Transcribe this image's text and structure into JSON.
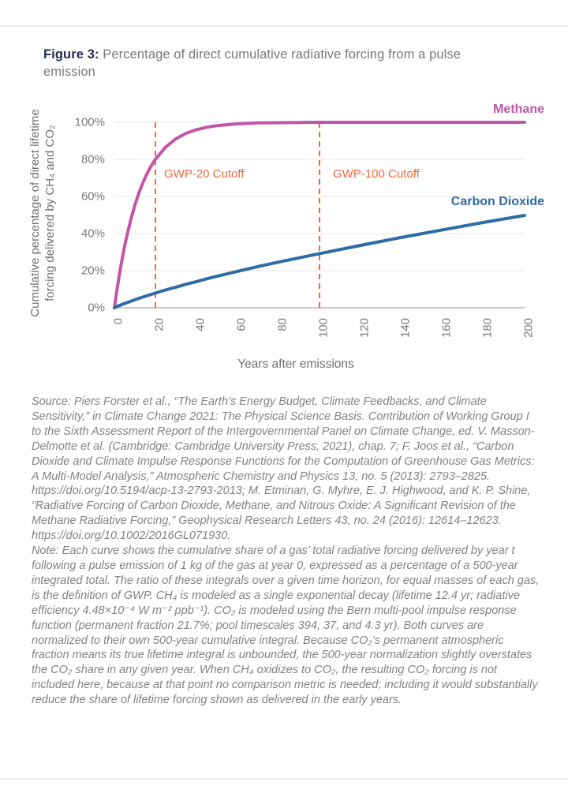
{
  "figure": {
    "label": "Figure 3:",
    "title": " Percentage of direct cumulative radiative forcing from a pulse emission"
  },
  "chart": {
    "y_axis_label_line1": "Cumulative percentage of direct lifetime",
    "y_axis_label_line2": "forcing delivered by CH₄ and CO₂",
    "x_axis_label": "Years after emissions",
    "methane_label": "Methane",
    "co2_label": "Carbon Dioxide",
    "gwp20_label": "GWP-20 Cutoff",
    "gwp100_label": "GWP-100 Cutoff"
  },
  "chart_data": {
    "type": "line",
    "title": "Percentage of direct cumulative radiative forcing from a pulse emission",
    "xlabel": "Years after emissions",
    "ylabel": "Cumulative percentage of direct lifetime forcing delivered by CH₄ and CO₂",
    "xlim": [
      0,
      200
    ],
    "ylim": [
      0,
      100
    ],
    "x_ticks": [
      0,
      20,
      40,
      60,
      80,
      100,
      120,
      140,
      160,
      180,
      200
    ],
    "y_ticks": [
      0,
      20,
      40,
      60,
      80,
      100
    ],
    "y_tick_suffix": "%",
    "grid": "horizontal",
    "legend": "inline-labels",
    "x": [
      0,
      1,
      2,
      3,
      4,
      5,
      6,
      8,
      10,
      12,
      14,
      16,
      18,
      20,
      25,
      30,
      35,
      40,
      45,
      50,
      60,
      70,
      80,
      90,
      100,
      120,
      140,
      160,
      180,
      200
    ],
    "series": [
      {
        "name": "Methane",
        "color": "#c355a7",
        "values": [
          0,
          7.7,
          14.9,
          21.5,
          27.6,
          33.2,
          38.4,
          47.5,
          55.4,
          62.0,
          67.7,
          72.5,
          76.6,
          80.1,
          86.7,
          91.1,
          94.1,
          96.0,
          97.3,
          98.2,
          99.2,
          99.7,
          99.8,
          99.9,
          100,
          100,
          100,
          100,
          100,
          100
        ]
      },
      {
        "name": "Carbon Dioxide",
        "color": "#2d6da4",
        "values": [
          0,
          0.5,
          1.0,
          1.4,
          1.9,
          2.3,
          2.7,
          3.5,
          4.3,
          5.1,
          5.8,
          6.5,
          7.2,
          7.9,
          9.6,
          11.1,
          12.7,
          14.1,
          15.6,
          17.0,
          19.6,
          22.2,
          24.6,
          26.9,
          29.2,
          33.6,
          37.9,
          42.0,
          46.0,
          49.8
        ]
      }
    ],
    "annotations": [
      {
        "label": "GWP-20 Cutoff",
        "x": 20,
        "color": "#f2683c",
        "style": "dashed-vertical"
      },
      {
        "label": "GWP-100 Cutoff",
        "x": 100,
        "color": "#f2683c",
        "style": "dashed-vertical"
      }
    ]
  },
  "colors": {
    "methane": "#c355a7",
    "co2": "#2d6da4",
    "cutoff": "#f2683c",
    "grid": "#e5e5e7",
    "axis": "#b6b6b8",
    "tick_text": "#77787b",
    "navy": "#272c55",
    "body_text": "#808285"
  },
  "source": {
    "text": "Source: Piers Forster et al., “The Earth’s Energy Budget, Climate Feedbacks, and Climate Sensitivity,” in Climate Change 2021: The Physical Science Basis. Contribution of Working Group I to the Sixth Assessment Report of the Intergovernmental Panel on Climate Change, ed. V. Masson-Delmotte et al. (Cambridge: Cambridge University Press, 2021), chap. 7; F. Joos et al., “Carbon Dioxide and Climate Impulse Response Functions for the Computation of Greenhouse Gas Metrics: A Multi-Model Analysis,” Atmospheric Chemistry and Physics 13, no. 5 (2013): 2793–2825. https://doi.org/10.5194/acp-13-2793-2013; M. Etminan, G. Myhre, E. J. Highwood, and K. P. Shine, “Radiative Forcing of Carbon Dioxide, Methane, and Nitrous Oxide: A Significant Revision of the Methane Radiative Forcing,” Geophysical Research Letters 43, no. 24 (2016): 12614–12623. https://doi.org/10.1002/2016GL071930."
  },
  "note": {
    "text": "Note: Each curve shows the cumulative share of a gas’ total radiative forcing delivered by year t following a pulse emission of 1 kg of the gas at year 0, expressed as a percentage of a 500-year integrated total. The ratio of these integrals over a given time horizon, for equal masses of each gas, is the definition of GWP. CH₄ is modeled as a single exponential decay (lifetime 12.4 yr; radiative efficiency 4.48×10⁻⁴ W m⁻² ppb⁻¹). CO₂ is modeled using the Bern multi-pool impulse response function (permanent fraction 21.7%; pool timescales 394, 37, and 4.3 yr). Both curves are normalized to their own 500-year cumulative integral. Because CO₂’s permanent atmospheric fraction means its true lifetime integral is unbounded, the 500-year normalization slightly overstates the CO₂ share in any given year. When CH₄ oxidizes to CO₂, the resulting CO₂ forcing is not included here, because at that point no comparison metric is needed; including it would substantially reduce the share of lifetime forcing shown as delivered in the early years."
  }
}
